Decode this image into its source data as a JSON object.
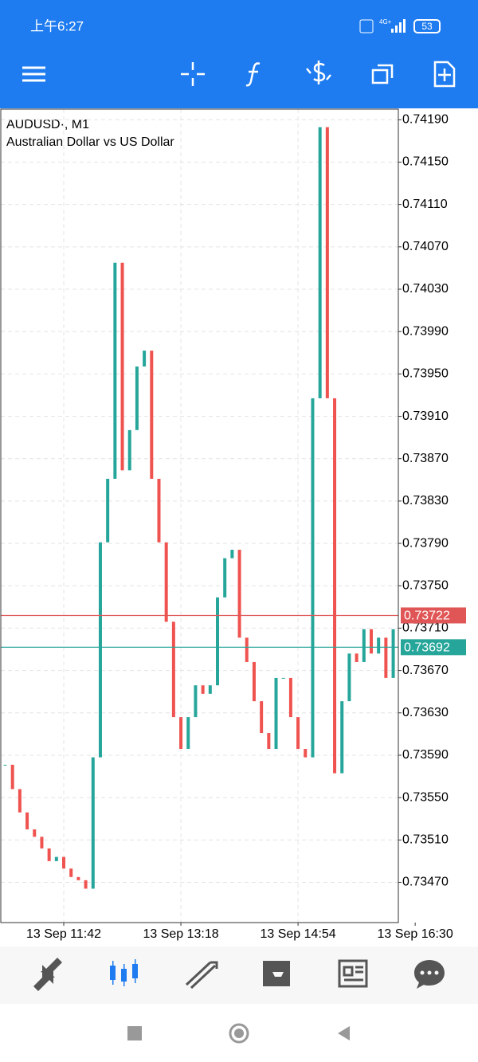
{
  "status_bar": {
    "time": "上午6:27",
    "network": "4G+",
    "battery": "53"
  },
  "chart_data": {
    "type": "candles",
    "title": "AUDUSD·, M1",
    "subtitle": "Australian Dollar vs US Dollar",
    "categories": [
      null,
      null,
      null,
      null,
      null,
      null,
      null,
      null,
      "13 Sep 11:42",
      null,
      null,
      null,
      null,
      null,
      null,
      null,
      null,
      null,
      null,
      null,
      null,
      null,
      null,
      null,
      "13 Sep 13:18",
      null,
      null,
      null,
      null,
      null,
      null,
      null,
      null,
      null,
      null,
      null,
      null,
      null,
      null,
      null,
      "13 Sep 14:54",
      null,
      null,
      null,
      null,
      null,
      null,
      null,
      null,
      null,
      null,
      null,
      null,
      null,
      null,
      null,
      "13 Sep 16:30"
    ],
    "values": [
      0.73581,
      0.73558,
      0.73536,
      0.7352,
      0.73513,
      0.73502,
      0.7349,
      0.73494,
      0.73483,
      0.73475,
      0.73472,
      0.73464,
      0.73588,
      0.73791,
      0.73851,
      0.74055,
      0.73859,
      0.73897,
      0.73957,
      0.73972,
      0.73851,
      0.73791,
      0.73716,
      0.73626,
      0.73596,
      0.73626,
      0.73656,
      0.73648,
      0.73656,
      0.73739,
      0.73776,
      0.73784,
      0.73701,
      0.73678,
      0.73641,
      0.73611,
      0.73596,
      0.73663,
      0.73663,
      0.73626,
      0.73596,
      0.73588,
      0.73927,
      0.74183,
      0.73927,
      0.73573,
      0.73641,
      0.73686,
      0.73678,
      0.73709,
      0.73686,
      0.73701,
      0.73663,
      0.73709,
      null,
      null,
      null
    ],
    "ylim": [
      0.73432,
      0.742
    ],
    "yticks": [
      {
        "value": 0.7347,
        "label": "0.73470"
      },
      {
        "value": 0.7351,
        "label": "0.73510"
      },
      {
        "value": 0.7355,
        "label": "0.73550"
      },
      {
        "value": 0.7359,
        "label": "0.73590"
      },
      {
        "value": 0.7363,
        "label": "0.73630"
      },
      {
        "value": 0.7367,
        "label": "0.73670"
      },
      {
        "value": 0.7371,
        "label": "0.73710"
      },
      {
        "value": 0.7375,
        "label": "0.73750"
      },
      {
        "value": 0.7379,
        "label": "0.73790"
      },
      {
        "value": 0.7383,
        "label": "0.73830"
      },
      {
        "value": 0.7387,
        "label": "0.73870"
      },
      {
        "value": 0.7391,
        "label": "0.73910"
      },
      {
        "value": 0.7395,
        "label": "0.73950"
      },
      {
        "value": 0.7399,
        "label": "0.73990"
      },
      {
        "value": 0.7403,
        "label": "0.74030"
      },
      {
        "value": 0.7407,
        "label": "0.74070"
      },
      {
        "value": 0.7411,
        "label": "0.74110"
      },
      {
        "value": 0.7415,
        "label": "0.74150"
      },
      {
        "value": 0.7419,
        "label": "0.74190"
      }
    ],
    "grid": true,
    "up_color": "#26a69a",
    "down_color": "#ef5350",
    "ask": 0.73722,
    "ask_color": "#e05555",
    "bid": 0.73692,
    "bid_color": "#26a69a"
  }
}
